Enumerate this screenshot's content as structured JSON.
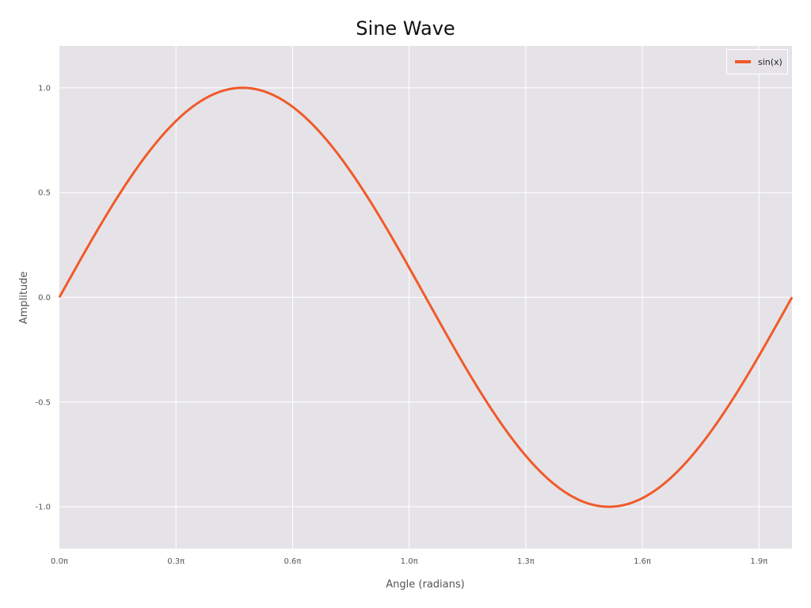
{
  "chart_data": {
    "type": "line",
    "title": "Sine Wave",
    "xlabel": "Angle (radians)",
    "ylabel": "Amplitude",
    "xlim": [
      0,
      6.2832
    ],
    "ylim": [
      -1.2,
      1.2
    ],
    "grid": true,
    "legend_position": "upper right",
    "x_ticks": [
      0,
      1,
      2,
      3,
      4,
      5,
      6
    ],
    "x_tick_labels": [
      "0.0π",
      "0.3π",
      "0.6π",
      "1.0π",
      "1.3π",
      "1.6π",
      "1.9π"
    ],
    "y_ticks": [
      1.0,
      0.5,
      0.0,
      -0.5,
      -1.0
    ],
    "y_tick_labels": [
      "1.0",
      "0.5",
      "0.0",
      "-0.5",
      "-1.0"
    ],
    "series": [
      {
        "name": "sin(x)",
        "color": "#f05a2a",
        "function": "sin(x)",
        "x": [
          0,
          0.7854,
          1.5708,
          2.3562,
          3.1416,
          3.927,
          4.7124,
          5.4978,
          6.2832
        ],
        "values": [
          0,
          0.707,
          1.0,
          0.707,
          0,
          -0.707,
          -1.0,
          -0.707,
          0
        ]
      }
    ]
  },
  "colors": {
    "plot_bg": "#e5e3e8",
    "grid": "#ffffff",
    "line": "#f05a2a"
  }
}
